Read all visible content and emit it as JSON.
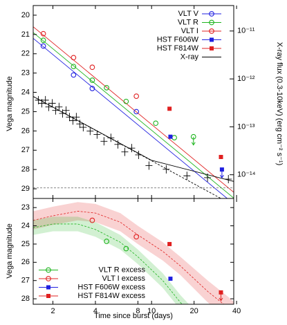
{
  "chart_data": [
    {
      "type": "line",
      "ylabel": "Vega magnitude",
      "y2label": "X-ray flux (0.3-10keV) (erg cm⁻² s⁻¹)",
      "xscale": "log",
      "y2scale": "log",
      "xlim": [
        1.45,
        38.2
      ],
      "xticks": [
        2,
        4,
        8,
        10,
        20,
        40
      ],
      "ylim": [
        29.5,
        19.5
      ],
      "yticks": [
        20,
        21,
        22,
        23,
        24,
        25,
        26,
        27,
        28,
        29
      ],
      "y2lim": [
        3.2e-15,
        3.4e-11
      ],
      "y2ticks": [
        {
          "value": 1e-11,
          "label": "10⁻¹¹"
        },
        {
          "value": 1e-12,
          "label": "10⁻¹²"
        },
        {
          "value": 1e-13,
          "label": "10⁻¹³"
        },
        {
          "value": 1e-14,
          "label": "10⁻¹⁴"
        }
      ],
      "legend": "upper right",
      "series": [
        {
          "name": "VLT V",
          "color": "#1f1fe0",
          "marker": "open-circle",
          "x": [
            1.71,
            2.8,
            3.8,
            7.8
          ],
          "values": [
            21.6,
            23.1,
            23.8,
            25.0
          ],
          "limits": [
            false,
            false,
            false,
            false
          ]
        },
        {
          "name": "VLT R",
          "color": "#1db41d",
          "marker": "open-circle",
          "x": [
            1.71,
            2.8,
            3.8,
            4.8,
            6.6,
            10.7,
            14.5,
            19.8
          ],
          "values": [
            21.3,
            22.66,
            23.37,
            23.76,
            24.47,
            25.6,
            26.35,
            26.3
          ],
          "limits": [
            false,
            false,
            false,
            false,
            false,
            false,
            false,
            true
          ]
        },
        {
          "name": "VLT I",
          "color": "#e02020",
          "marker": "open-circle",
          "x": [
            1.71,
            2.8,
            3.8,
            7.8
          ],
          "values": [
            20.96,
            22.2,
            22.7,
            24.2
          ],
          "limits": [
            false,
            false,
            false,
            false
          ]
        },
        {
          "name": "HST F606W",
          "color": "#1f1fe0",
          "marker": "filled-square",
          "x": [
            13.6,
            31.5
          ],
          "values": [
            26.3,
            28.0
          ],
          "limits": [
            false,
            true
          ]
        },
        {
          "name": "HST F814W",
          "color": "#e02020",
          "marker": "filled-square",
          "x": [
            13.4,
            31
          ],
          "values": [
            24.85,
            27.35
          ],
          "limits": [
            false,
            false
          ]
        },
        {
          "name": "X-ray",
          "color": "#000000",
          "marker": "cross",
          "axis": "y2",
          "x": [
            1.58,
            1.67,
            1.77,
            1.87,
            1.98,
            2.09,
            2.21,
            2.34,
            2.48,
            2.62,
            2.77,
            2.93,
            3.1,
            3.28,
            3.67,
            4.11,
            4.6,
            5.15,
            5.77,
            6.46,
            7.23,
            8.09,
            9.58,
            12.7,
            17.8,
            24.9,
            35
          ],
          "values": [
            3.6e-13,
            3.1e-13,
            3.6e-13,
            2.6e-13,
            3.1e-13,
            2.2e-13,
            2.6e-13,
            1.9e-13,
            2.2e-13,
            1.6e-13,
            1.35e-13,
            1.6e-13,
            1.15e-13,
            9.8e-14,
            8.2e-14,
            6.9e-14,
            5e-14,
            5.9e-14,
            4.3e-14,
            3e-14,
            3.6e-14,
            2.6e-14,
            1.55e-14,
            1.3e-14,
            9.5e-15,
            8.7e-15,
            8.1e-15
          ],
          "limits": []
        }
      ],
      "fits": [
        {
          "color": "#e02020",
          "dash": false,
          "x": [
            1.45,
            40
          ],
          "values": [
            20.6,
            29.3
          ]
        },
        {
          "color": "#1db41d",
          "dash": false,
          "x": [
            1.45,
            40
          ],
          "values": [
            20.9,
            29.6
          ]
        },
        {
          "color": "#1f1fe0",
          "dash": false,
          "x": [
            1.45,
            40
          ],
          "values": [
            21.2,
            29.9
          ]
        },
        {
          "color": "#000000",
          "dash": false,
          "axis": "y2",
          "x": [
            1.45,
            10,
            40
          ],
          "values": [
            4.3e-13,
            2e-14,
            7e-15
          ]
        },
        {
          "color": "#000000",
          "dash": true,
          "axis": "y2",
          "x": [
            1.45,
            31
          ],
          "values": [
            4.3e-13,
            3.2e-15
          ]
        },
        {
          "color": "#777777",
          "dash": true,
          "x": [
            1.45,
            40
          ],
          "values": [
            28.95,
            28.95
          ]
        }
      ]
    },
    {
      "type": "line",
      "ylabel": "Vega magnitude",
      "xlabel": "Time since burst (days)",
      "xscale": "log",
      "xlim": [
        1.45,
        38.2
      ],
      "xticks": [
        2,
        4,
        8,
        10,
        20,
        40
      ],
      "ylim": [
        28.3,
        22.5
      ],
      "yticks": [
        23,
        24,
        25,
        26,
        27,
        28
      ],
      "legend": "lower left",
      "series": [
        {
          "name": "VLT R excess",
          "color": "#1db41d",
          "marker": "open-circle",
          "x": [
            4.8,
            6.6
          ],
          "values": [
            24.85,
            25.25
          ],
          "limits": [
            false,
            false
          ]
        },
        {
          "name": "VLT I excess",
          "color": "#e02020",
          "marker": "open-circle",
          "x": [
            3.8,
            7.8
          ],
          "values": [
            23.7,
            24.6
          ],
          "limits": [
            false,
            false
          ]
        },
        {
          "name": "HST F606W excess",
          "color": "#1f1fe0",
          "marker": "filled-square",
          "x": [
            13.6
          ],
          "values": [
            26.9
          ],
          "limits": [
            false
          ]
        },
        {
          "name": "HST F814W excess",
          "color": "#e02020",
          "marker": "filled-square",
          "x": [
            13.4,
            31
          ],
          "values": [
            25.0,
            27.65
          ],
          "limits": [
            false,
            true
          ]
        }
      ],
      "bands": [
        {
          "color": "#e02020",
          "x": [
            1.45,
            2,
            3,
            4,
            6,
            8,
            12,
            16,
            25,
            35,
            40
          ],
          "values": [
            23.7,
            23.45,
            23.2,
            23.3,
            23.8,
            24.5,
            25.4,
            26.2,
            27.6,
            28.5,
            28.9
          ],
          "lower": [
            23.2,
            22.95,
            22.7,
            22.8,
            23.3,
            24.0,
            24.9,
            25.7,
            27.0,
            27.9,
            28.3
          ],
          "upper": [
            24.2,
            23.95,
            23.7,
            23.8,
            24.3,
            25.0,
            25.9,
            26.7,
            28.2,
            29.1,
            29.5
          ]
        },
        {
          "color": "#1db41d",
          "x": [
            1.45,
            2,
            3,
            4,
            6,
            8,
            12,
            16,
            20,
            25
          ],
          "values": [
            24.1,
            23.9,
            23.9,
            24.2,
            24.9,
            25.7,
            27.0,
            28.2,
            29.0,
            29.8
          ],
          "lower": [
            23.7,
            23.5,
            23.5,
            23.8,
            24.5,
            25.3,
            26.6,
            27.8,
            28.6,
            29.4
          ],
          "upper": [
            24.5,
            24.3,
            24.3,
            24.6,
            25.3,
            26.1,
            27.4,
            28.6,
            29.4,
            30.2
          ]
        }
      ]
    }
  ]
}
